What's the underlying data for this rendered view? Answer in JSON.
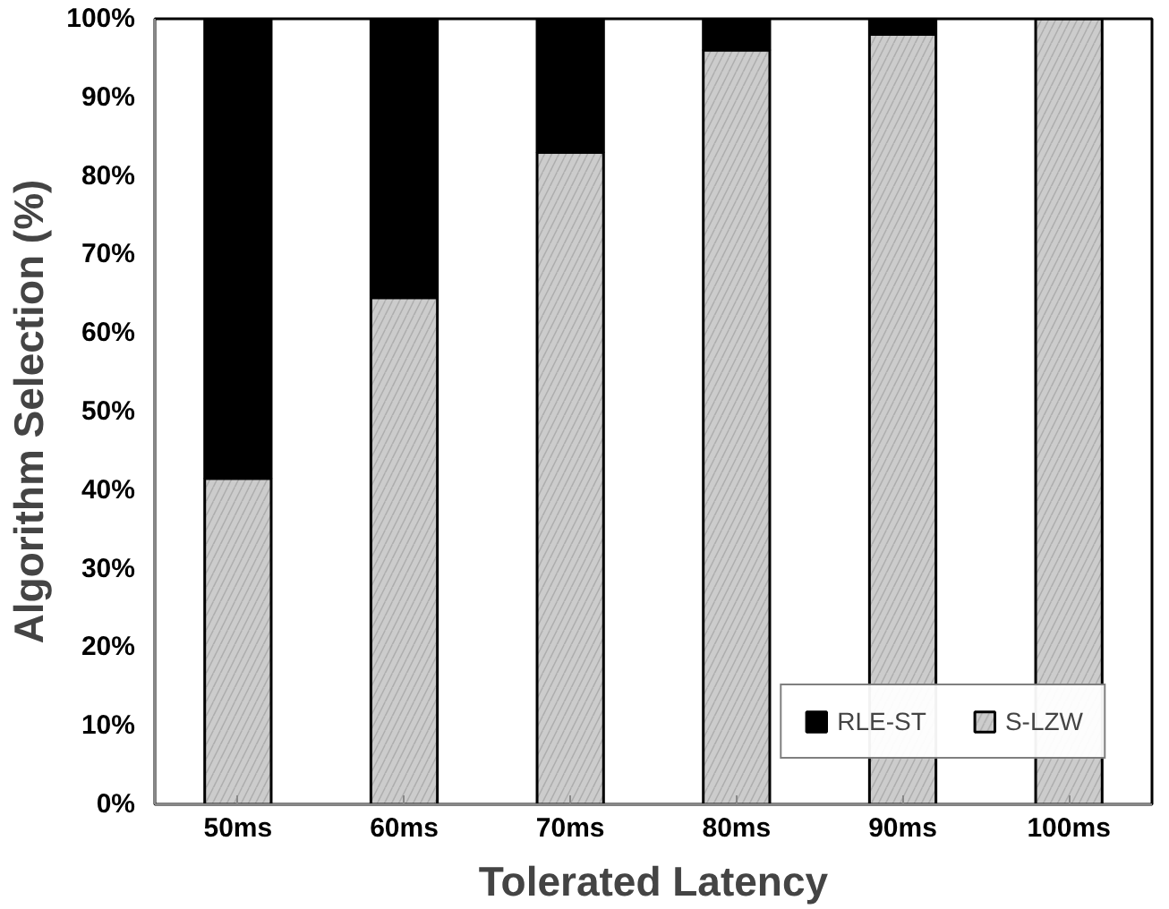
{
  "chart_data": {
    "type": "bar",
    "stacked": true,
    "xlabel": "Tolerated Latency",
    "ylabel": "Algorithm Selection (%)",
    "categories": [
      "50ms",
      "60ms",
      "70ms",
      "80ms",
      "90ms",
      "100ms"
    ],
    "series": [
      {
        "name": "S-LZW",
        "color": "#cccccc",
        "values": [
          41.5,
          64.5,
          83,
          96,
          98,
          100
        ]
      },
      {
        "name": "RLE-ST",
        "color": "#000000",
        "values": [
          58.5,
          35.5,
          17,
          4,
          2,
          0
        ]
      }
    ],
    "ylim": [
      0,
      100
    ],
    "yticks": [
      {
        "value": 0,
        "label": "0%"
      },
      {
        "value": 10,
        "label": "10%"
      },
      {
        "value": 20,
        "label": "20%"
      },
      {
        "value": 30,
        "label": "30%"
      },
      {
        "value": 40,
        "label": "40%"
      },
      {
        "value": 50,
        "label": "50%"
      },
      {
        "value": 60,
        "label": "60%"
      },
      {
        "value": 70,
        "label": "70%"
      },
      {
        "value": 80,
        "label": "80%"
      },
      {
        "value": 90,
        "label": "90%"
      },
      {
        "value": 100,
        "label": "100%"
      }
    ],
    "grid": false,
    "legend": "bottom right"
  }
}
